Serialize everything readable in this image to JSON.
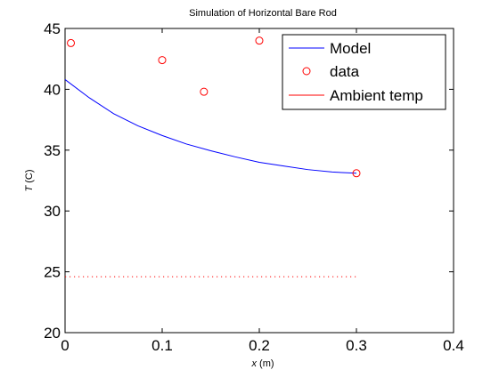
{
  "chart_data": {
    "type": "line",
    "title": "Simulation of Horizontal Bare Rod",
    "xlabel": {
      "var": "x",
      "unit": " (m)"
    },
    "ylabel": {
      "var": "T",
      "unit": " (C)"
    },
    "xlim": [
      0,
      0.4
    ],
    "ylim": [
      20,
      45
    ],
    "xticks": [
      0,
      0.1,
      0.2,
      0.3,
      0.4
    ],
    "yticks": [
      20,
      25,
      30,
      35,
      40,
      45
    ],
    "xtick_labels": [
      "0",
      "0.1",
      "0.2",
      "0.3",
      "0.4"
    ],
    "ytick_labels": [
      "20",
      "25",
      "30",
      "35",
      "40",
      "45"
    ],
    "grid": false,
    "legend_position": "top-right",
    "series": [
      {
        "name": "Model",
        "kind": "line",
        "color": "#0000ff",
        "style": "solid",
        "x": [
          0,
          0.025,
          0.05,
          0.075,
          0.1,
          0.125,
          0.15,
          0.175,
          0.2,
          0.225,
          0.25,
          0.275,
          0.3
        ],
        "y": [
          40.8,
          39.3,
          38.0,
          37.0,
          36.2,
          35.5,
          34.95,
          34.45,
          34.0,
          33.7,
          33.4,
          33.2,
          33.1
        ]
      },
      {
        "name": "data",
        "kind": "marker",
        "color": "#ff0000",
        "marker": "circle",
        "x": [
          0.006,
          0.1,
          0.143,
          0.2,
          0.3
        ],
        "y": [
          43.8,
          42.4,
          39.8,
          44.0,
          33.1
        ]
      },
      {
        "name": "Ambient temp",
        "kind": "line",
        "color": "#ff0000",
        "style": "dotted",
        "x": [
          0,
          0.3
        ],
        "y": [
          24.6,
          24.6
        ]
      }
    ]
  }
}
